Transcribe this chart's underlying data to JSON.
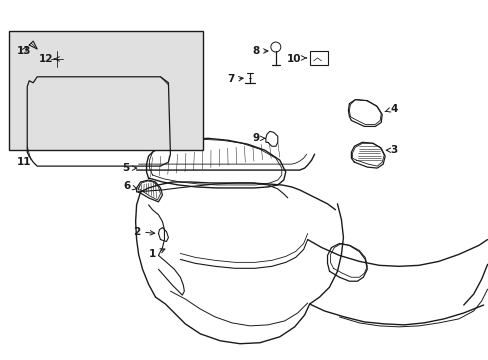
{
  "bg_color": "#ffffff",
  "line_color": "#1a1a1a",
  "inset_bg": "#e0e0e0",
  "figsize": [
    4.89,
    3.6
  ],
  "dpi": 100
}
